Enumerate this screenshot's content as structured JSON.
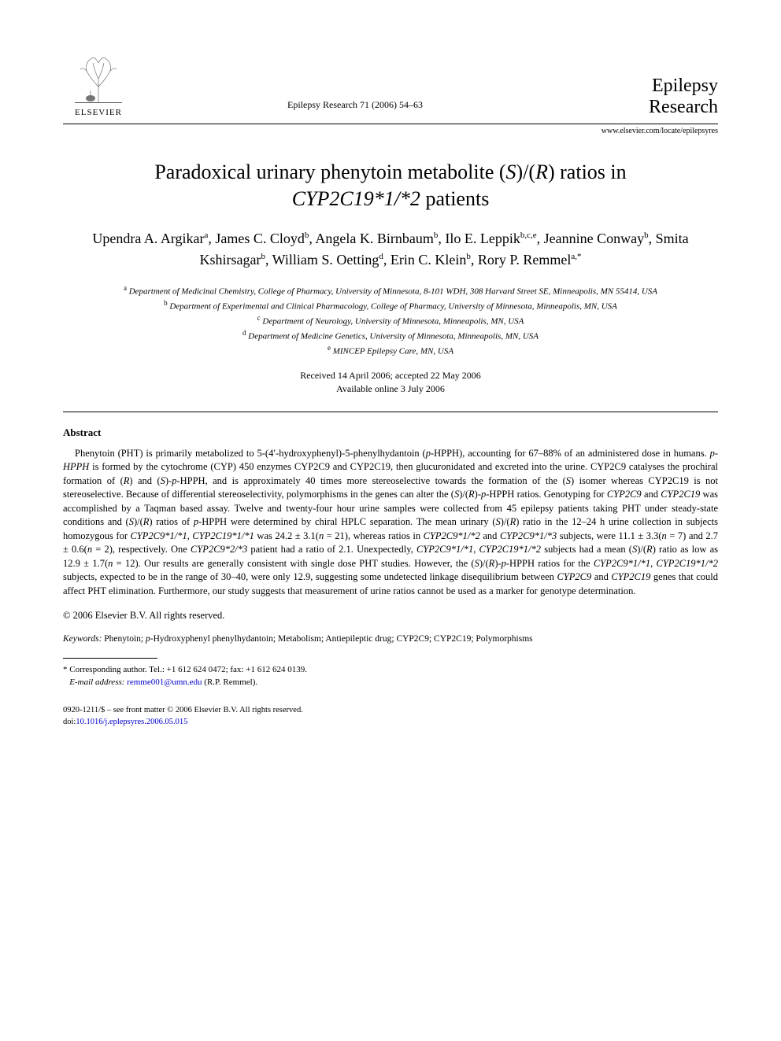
{
  "header": {
    "elsevier_label": "ELSEVIER",
    "journal_ref": "Epilepsy Research 71 (2006) 54–63",
    "journal_name_line1": "Epilepsy",
    "journal_name_line2": "Research",
    "journal_url": "www.elsevier.com/locate/epilepsyres"
  },
  "title_line1": "Paradoxical urinary phenytoin metabolite (",
  "title_italic1": "S",
  "title_mid1": ")/(",
  "title_italic2": "R",
  "title_mid2": ") ratios in",
  "title_line2_italic": "CYP2C19*1/*2",
  "title_line2_rest": " patients",
  "authors": [
    {
      "name": "Upendra A. Argikar",
      "sup": "a"
    },
    {
      "name": "James C. Cloyd",
      "sup": "b"
    },
    {
      "name": "Angela K. Birnbaum",
      "sup": "b"
    },
    {
      "name": "Ilo E. Leppik",
      "sup": "b,c,e"
    },
    {
      "name": "Jeannine Conway",
      "sup": "b"
    },
    {
      "name": "Smita Kshirsagar",
      "sup": "b"
    },
    {
      "name": "William S. Oetting",
      "sup": "d"
    },
    {
      "name": "Erin C. Klein",
      "sup": "b"
    },
    {
      "name": "Rory P. Remmel",
      "sup": "a,*"
    }
  ],
  "affiliations": [
    {
      "sup": "a",
      "text": "Department of Medicinal Chemistry, College of Pharmacy, University of Minnesota, 8-101 WDH, 308 Harvard Street SE, Minneapolis, MN 55414, USA"
    },
    {
      "sup": "b",
      "text": "Department of Experimental and Clinical Pharmacology, College of Pharmacy, University of Minnesota, Minneapolis, MN, USA"
    },
    {
      "sup": "c",
      "text": "Department of Neurology, University of Minnesota, Minneapolis, MN, USA"
    },
    {
      "sup": "d",
      "text": "Department of Medicine Genetics, University of Minnesota, Minneapolis, MN, USA"
    },
    {
      "sup": "e",
      "text": "MINCEP Epilepsy Care, MN, USA"
    }
  ],
  "dates": {
    "received": "Received 14 April 2006; accepted 22 May 2006",
    "online": "Available online 3 July 2006"
  },
  "abstract": {
    "heading": "Abstract",
    "body_html": "Phenytoin (PHT) is primarily metabolized to 5-(4′-hydroxyphenyl)-5-phenylhydantoin (<span class='italic'>p</span>-HPPH), accounting for 67–88% of an administered dose in humans. <span class='italic'>p-HPPH</span> is formed by the cytochrome (CYP) 450 enzymes CYP2C9 and CYP2C19, then glucuronidated and excreted into the urine. CYP2C9 catalyses the prochiral formation of (<span class='italic'>R</span>) and (<span class='italic'>S</span>)-<span class='italic'>p</span>-HPPH, and is approximately 40 times more stereoselective towards the formation of the (<span class='italic'>S</span>) isomer whereas CYP2C19 is not stereoselective. Because of differential stereoselectivity, polymorphisms in the genes can alter the (<span class='italic'>S</span>)/(<span class='italic'>R</span>)-<span class='italic'>p</span>-HPPH ratios. Genotyping for <span class='italic'>CYP2C9</span> and <span class='italic'>CYP2C19</span> was accomplished by a Taqman based assay. Twelve and twenty-four hour urine samples were collected from 45 epilepsy patients taking PHT under steady-state conditions and (<span class='italic'>S</span>)/(<span class='italic'>R</span>) ratios of <span class='italic'>p</span>-HPPH were determined by chiral HPLC separation. The mean urinary (<span class='italic'>S</span>)/(<span class='italic'>R</span>) ratio in the 12–24 h urine collection in subjects homozygous for <span class='italic'>CYP2C9*1/*1</span>, <span class='italic'>CYP2C19*1/*1</span> was 24.2 ± 3.1(<span class='italic'>n</span> = 21), whereas ratios in <span class='italic'>CYP2C9*1/*2</span> and <span class='italic'>CYP2C9*1/*3</span> subjects, were 11.1 ± 3.3(<span class='italic'>n</span> = 7) and 2.7 ± 0.6(<span class='italic'>n</span> = 2), respectively. One <span class='italic'>CYP2C9*2/*3</span> patient had a ratio of 2.1. Unexpectedly, <span class='italic'>CYP2C9*1/*1</span>, <span class='italic'>CYP2C19*1/*2</span> subjects had a mean (<span class='italic'>S</span>)/(<span class='italic'>R</span>) ratio as low as 12.9 ± 1.7(<span class='italic'>n</span> = 12). Our results are generally consistent with single dose PHT studies. However, the (<span class='italic'>S</span>)/(<span class='italic'>R</span>)-<span class='italic'>p</span>-HPPH ratios for the <span class='italic'>CYP2C9*1/*1</span>, <span class='italic'>CYP2C19*1/*2</span> subjects, expected to be in the range of 30–40, were only 12.9, suggesting some undetected linkage disequilibrium between <span class='italic'>CYP2C9</span> and <span class='italic'>CYP2C19</span> genes that could affect PHT elimination. Furthermore, our study suggests that measurement of urine ratios cannot be used as a marker for genotype determination.",
    "copyright": "© 2006 Elsevier B.V. All rights reserved."
  },
  "keywords": {
    "label": "Keywords:",
    "text_html": "Phenytoin; <span class='italic'>p</span>-Hydroxyphenyl phenylhydantoin; Metabolism; Antiepileptic drug; CYP2C9; CYP2C19; Polymorphisms"
  },
  "footnote": {
    "corresponding": "* Corresponding author. Tel.: +1 612 624 0472; fax: +1 612 624 0139.",
    "email_label": "E-mail address:",
    "email": "remme001@umn.edu",
    "email_person": "(R.P. Remmel)."
  },
  "bottom": {
    "issn_line": "0920-1211/$ – see front matter © 2006 Elsevier B.V. All rights reserved.",
    "doi_label": "doi:",
    "doi": "10.1016/j.eplepsyres.2006.05.015"
  }
}
